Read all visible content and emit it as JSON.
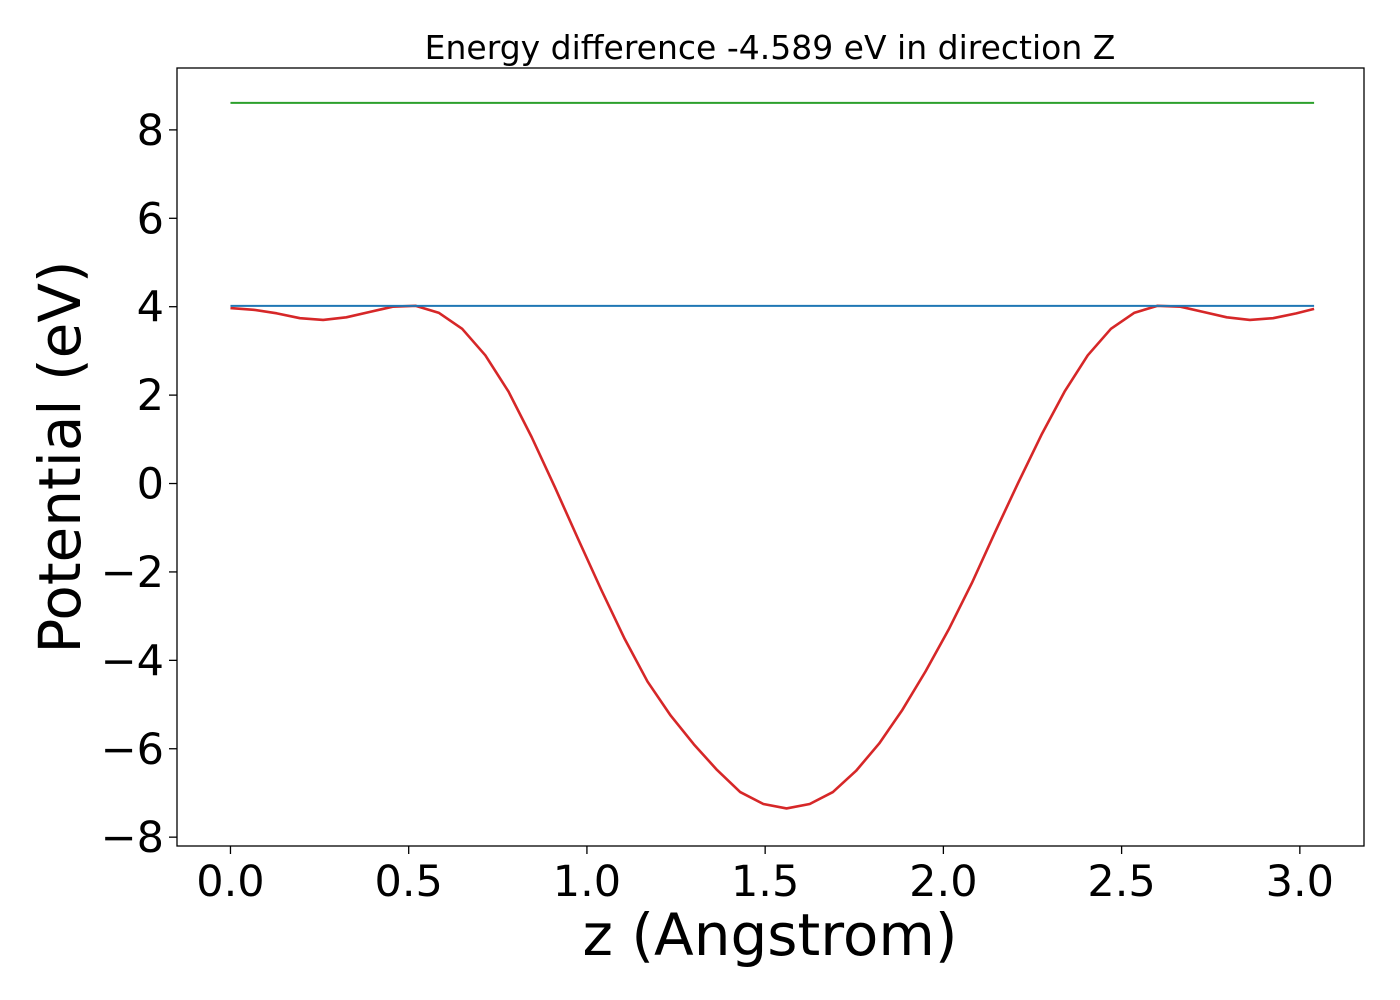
{
  "chart_data": {
    "type": "line",
    "title": "Energy difference -4.589 eV in direction Z",
    "xlabel": "z (Angstrom)",
    "ylabel": "Potential (eV)",
    "xlim": [
      -0.15,
      3.18
    ],
    "ylim": [
      -8.2,
      9.4
    ],
    "xticks": [
      0.0,
      0.5,
      1.0,
      1.5,
      2.0,
      2.5,
      3.0
    ],
    "xtick_labels": [
      "0.0",
      "0.5",
      "1.0",
      "1.5",
      "2.0",
      "2.5",
      "3.0"
    ],
    "yticks": [
      -8,
      -6,
      -4,
      -2,
      0,
      2,
      4,
      6,
      8
    ],
    "ytick_labels": [
      "−8",
      "−6",
      "−4",
      "−2",
      "0",
      "2",
      "4",
      "6",
      "8"
    ],
    "grid": false,
    "series": [
      {
        "color": "#d62728",
        "x": [
          0.0,
          0.065,
          0.13,
          0.195,
          0.26,
          0.325,
          0.39,
          0.455,
          0.52,
          0.585,
          0.65,
          0.715,
          0.78,
          0.845,
          0.91,
          0.975,
          1.04,
          1.105,
          1.17,
          1.235,
          1.3,
          1.365,
          1.43,
          1.495,
          1.56,
          1.625,
          1.69,
          1.755,
          1.82,
          1.885,
          1.95,
          2.015,
          2.08,
          2.145,
          2.21,
          2.275,
          2.34,
          2.405,
          2.47,
          2.535,
          2.6,
          2.665,
          2.73,
          2.795,
          2.86,
          2.925,
          2.99,
          3.04
        ],
        "values": [
          3.97,
          3.93,
          3.85,
          3.74,
          3.7,
          3.76,
          3.88,
          4.0,
          4.02,
          3.86,
          3.5,
          2.9,
          2.08,
          1.05,
          -0.08,
          -1.25,
          -2.4,
          -3.5,
          -4.48,
          -5.25,
          -5.9,
          -6.48,
          -6.98,
          -7.25,
          -7.35,
          -7.25,
          -6.98,
          -6.5,
          -5.88,
          -5.12,
          -4.25,
          -3.3,
          -2.25,
          -1.1,
          0.02,
          1.1,
          2.08,
          2.9,
          3.5,
          3.86,
          4.02,
          4.0,
          3.88,
          3.76,
          3.7,
          3.74,
          3.85,
          3.95
        ]
      },
      {
        "color": "#1f77b4",
        "x": [
          0.0,
          3.04
        ],
        "values": [
          4.02,
          4.02
        ]
      },
      {
        "color": "#2ca02c",
        "x": [
          0.0,
          3.04
        ],
        "values": [
          8.61,
          8.61
        ]
      }
    ]
  }
}
